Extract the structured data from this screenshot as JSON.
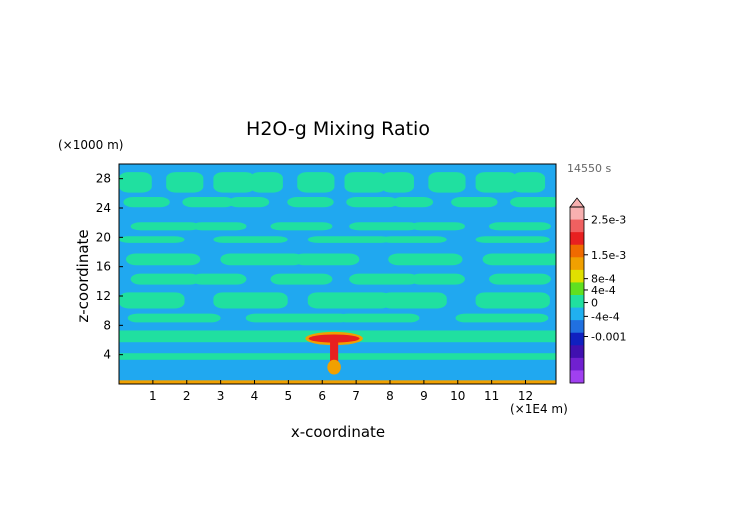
{
  "chart_data": {
    "type": "heatmap",
    "title": "H2O-g Mixing Ratio",
    "xlabel": "x-coordinate",
    "ylabel": "z-coordinate",
    "x_unit": "(×1E4 m)",
    "y_unit": "(×1000 m)",
    "time_label": "14550 s",
    "xlim": [
      0,
      12.9
    ],
    "ylim": [
      0,
      30
    ],
    "x_ticks": [
      1,
      2,
      3,
      4,
      5,
      6,
      7,
      8,
      9,
      10,
      11,
      12
    ],
    "y_ticks": [
      4,
      8,
      12,
      16,
      20,
      24,
      28
    ],
    "colorbar": {
      "labels": [
        "2.5e-3",
        "1.5e-3",
        "8e-4",
        "4e-4",
        "0",
        "-4e-4",
        "-0.001"
      ],
      "colors": [
        "#f8b0b0",
        "#f06060",
        "#e82020",
        "#f06a00",
        "#f0a000",
        "#e0e000",
        "#60e020",
        "#20e0a0",
        "#20b0f0",
        "#2070e0",
        "#1020c0",
        "#4010b0",
        "#7020d0",
        "#a040f0"
      ]
    },
    "features": {
      "background_level_color": "#20a8f0",
      "band_color": "#20e0a0",
      "plume_center_x": 6.35,
      "plume_top_z": 6.2,
      "anvil_halfwidth_x": 0.75,
      "surface_layer_z": 0.5
    }
  }
}
